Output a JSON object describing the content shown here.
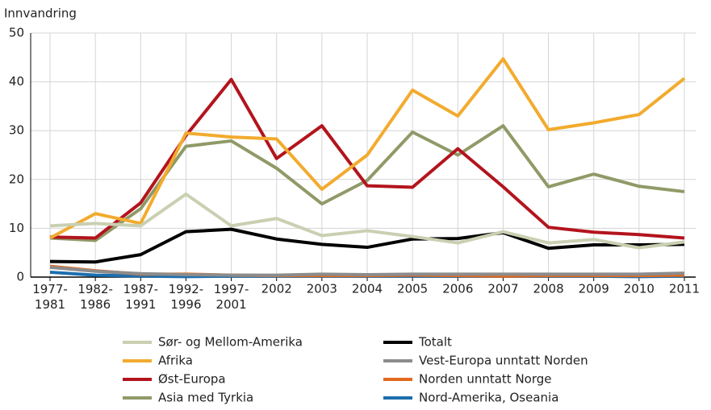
{
  "chart_data": {
    "type": "line",
    "y_label": "Innvandring",
    "categories": [
      "1977-1981",
      "1982-1986",
      "1987-1991",
      "1992-1996",
      "1997-2001",
      "2002",
      "2003",
      "2004",
      "2005",
      "2006",
      "2007",
      "2008",
      "2009",
      "2010",
      "2011"
    ],
    "ylim": [
      0,
      50
    ],
    "yticks": [
      0,
      10,
      20,
      30,
      40,
      50
    ],
    "grid": true,
    "legend": "bottom",
    "series": [
      {
        "name": "Sør- og Mellom-Amerika",
        "color": "#c9d0b2",
        "values": [
          10.5,
          11,
          10.5,
          17,
          10.5,
          12,
          8.5,
          9.5,
          8.3,
          7,
          9.3,
          7,
          7.7,
          6,
          7.2
        ]
      },
      {
        "name": "Afrika",
        "color": "#f2ab2e",
        "values": [
          8,
          13,
          11,
          29.5,
          28.7,
          28.3,
          18,
          25,
          38.3,
          33,
          44.7,
          30.2,
          31.6,
          33.3,
          40.7
        ]
      },
      {
        "name": "Øst-Europa",
        "color": "#b3141d",
        "values": [
          8.2,
          8,
          15.2,
          29,
          40.5,
          24.3,
          31,
          18.7,
          18.4,
          26.3,
          18.5,
          10.2,
          9.2,
          8.7,
          8
        ]
      },
      {
        "name": "Asia med Tyrkia",
        "color": "#8f9a67",
        "values": [
          8,
          7.5,
          14,
          26.8,
          27.9,
          22.3,
          15,
          19.8,
          29.7,
          25,
          31,
          18.5,
          21.1,
          18.6,
          17.5
        ]
      },
      {
        "name": "Totalt",
        "color": "#000000",
        "values": [
          3.2,
          3.1,
          4.6,
          9.3,
          9.8,
          7.8,
          6.7,
          6.1,
          7.8,
          7.9,
          9.1,
          5.9,
          6.6,
          6.6,
          6.7
        ]
      },
      {
        "name": "Vest-Europa unntatt Norden",
        "color": "#8c8c8c",
        "values": [
          2,
          1.2,
          0.7,
          0.5,
          0.4,
          0.4,
          0.6,
          0.5,
          0.6,
          0.6,
          0.6,
          0.6,
          0.6,
          0.6,
          0.8
        ]
      },
      {
        "name": "Norden unntatt Norge",
        "color": "#e2691f",
        "values": [
          2.2,
          1.3,
          0.6,
          0.6,
          0.4,
          0.3,
          0.3,
          0.3,
          0.4,
          0.3,
          0.2,
          0.3,
          0.3,
          0.3,
          0.4
        ]
      },
      {
        "name": "Nord-Amerika, Oseania",
        "color": "#1b6eae",
        "values": [
          1,
          0.4,
          0.2,
          0.1,
          0.2,
          0.2,
          0.2,
          0.2,
          0.2,
          0.2,
          0.2,
          0.2,
          0.2,
          0.1,
          0.2
        ]
      }
    ]
  }
}
